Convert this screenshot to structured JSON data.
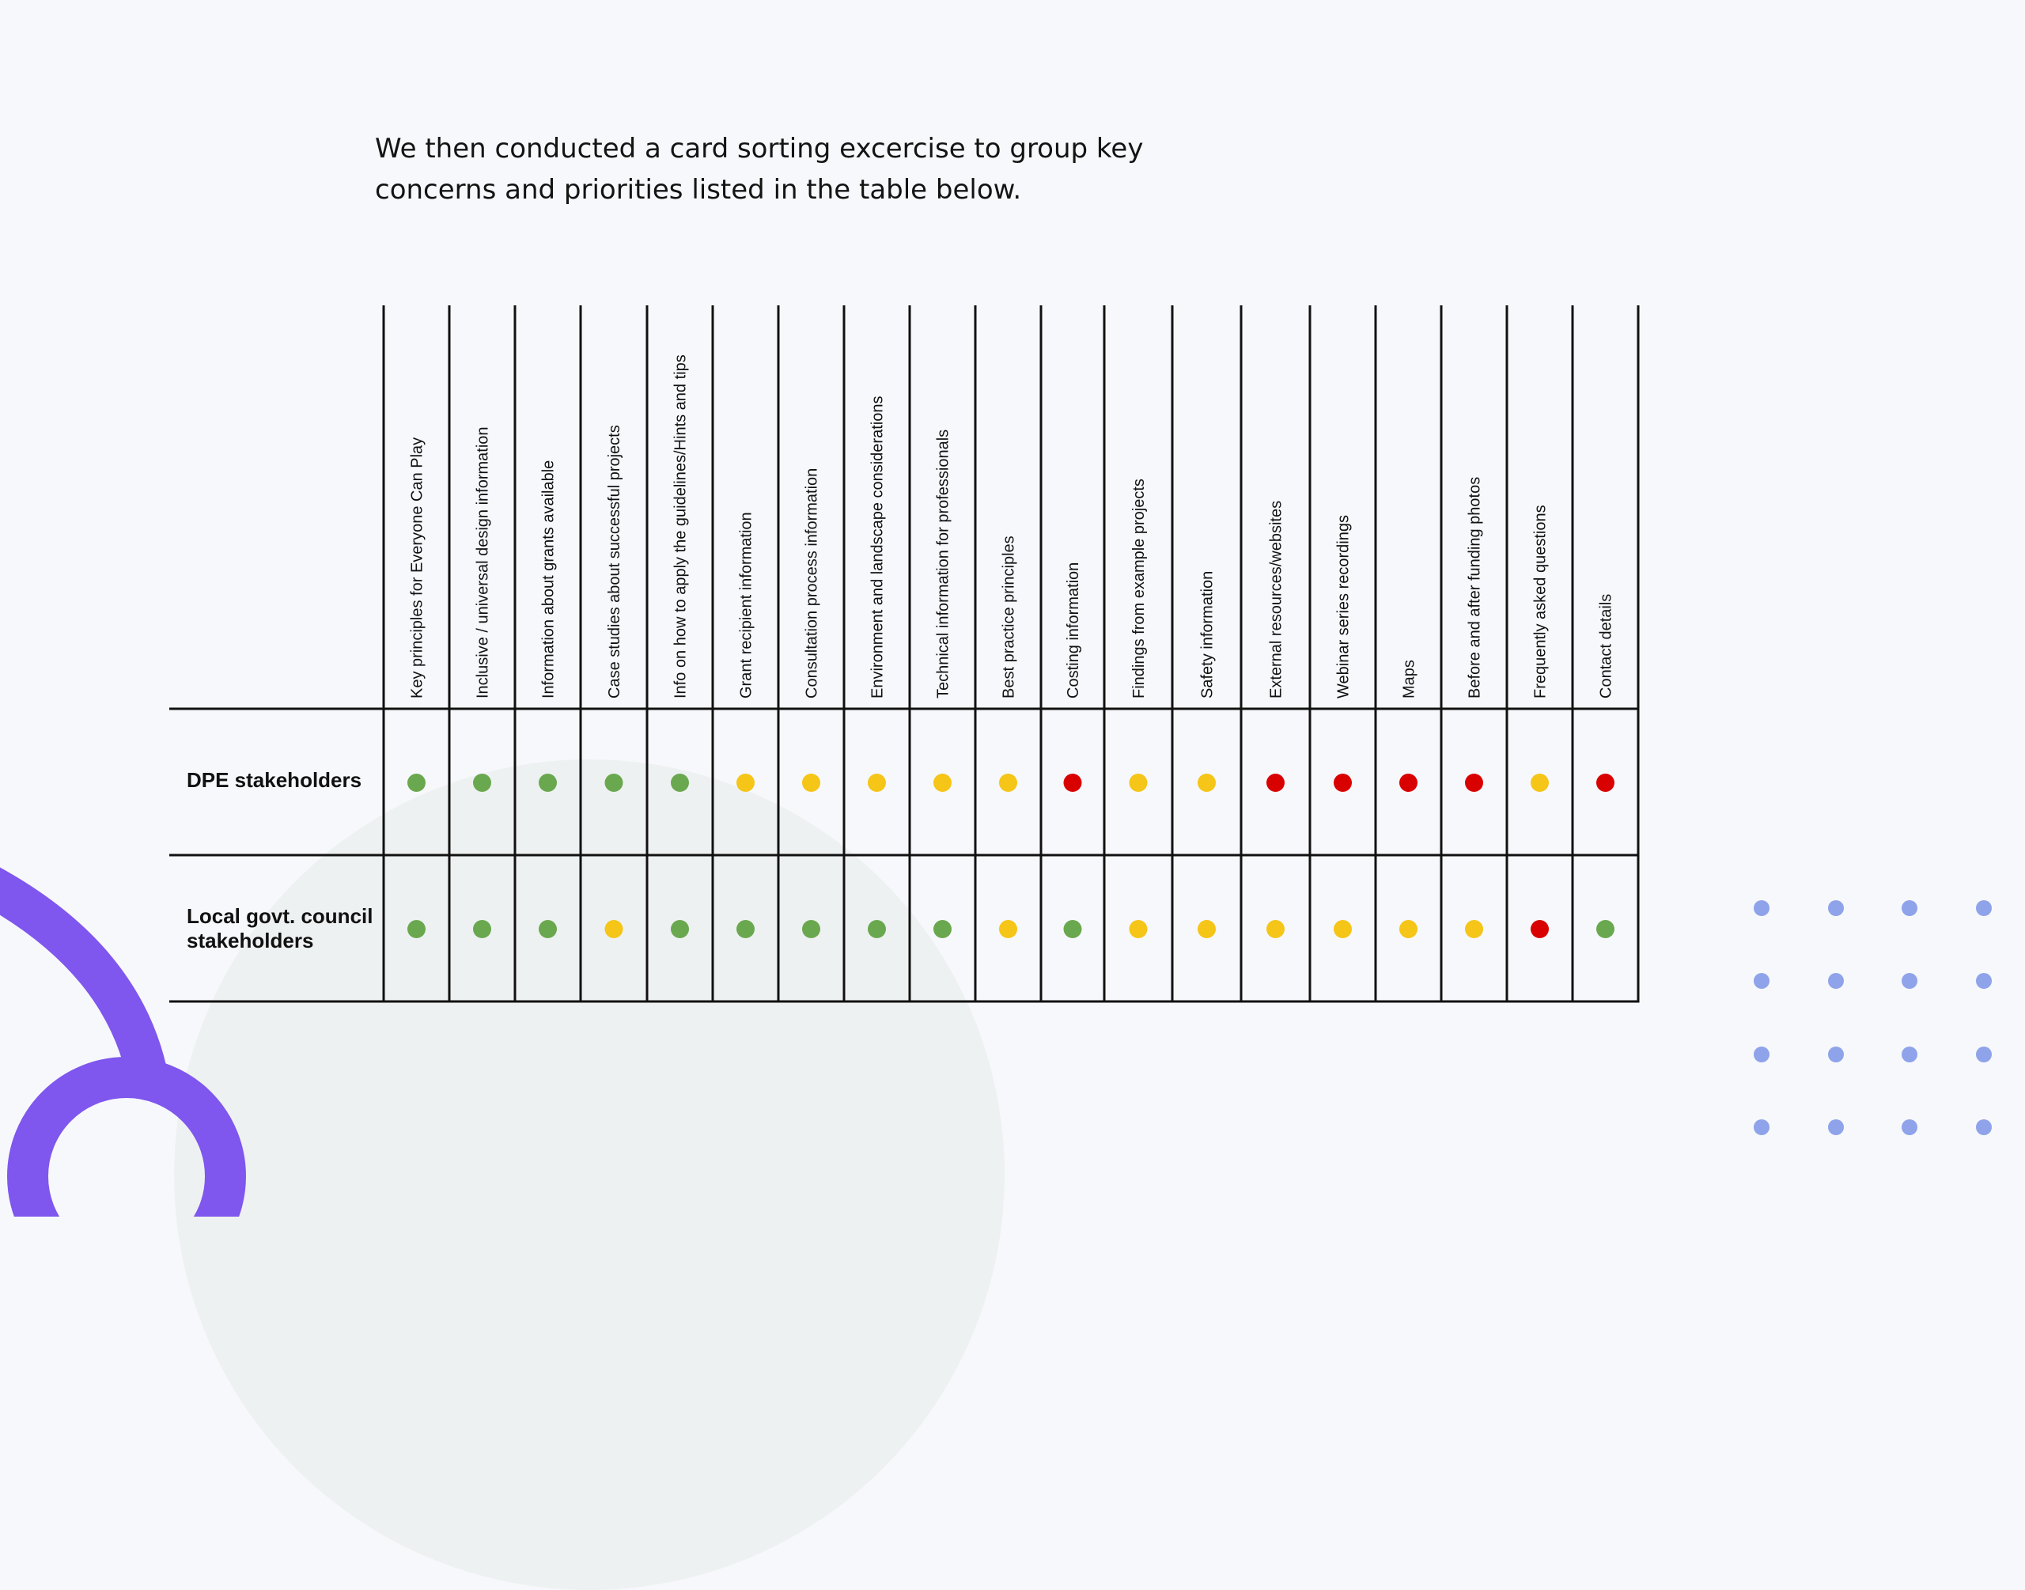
{
  "intro": {
    "line1": "We then conducted a card sorting excercise to group key",
    "line2": "concerns and priorities listed in the table below."
  },
  "colors": {
    "green": "#6aa84f",
    "yellow": "#f5c518",
    "red": "#d90000",
    "accent_purple": "#7f56ee",
    "dot_blue": "#8ea3ea",
    "grid_line": "#111111"
  },
  "table": {
    "columns": [
      "Key principles for Everyone Can Play",
      "Inclusive / universal design information",
      "Information about grants available",
      "Case studies about successful projects",
      "Info on how to apply the guidelines/Hints and tips",
      "Grant recipient information",
      "Consultation process information",
      "Environment and landscape considerations",
      "Technical information for professionals",
      "Best practice principles",
      "Costing information",
      "Findings from example projects",
      "Safety information",
      "External resources/websites",
      "Webinar series recordings",
      "Maps",
      "Before and after funding photos",
      "Frequently asked questions",
      "Contact details"
    ],
    "rows": [
      {
        "label": "DPE stakeholders",
        "ratings": [
          "green",
          "green",
          "green",
          "green",
          "green",
          "yellow",
          "yellow",
          "yellow",
          "yellow",
          "yellow",
          "red",
          "yellow",
          "yellow",
          "red",
          "red",
          "red",
          "red",
          "yellow",
          "red"
        ]
      },
      {
        "label": "Local govt. council stakeholders",
        "ratings": [
          "green",
          "green",
          "green",
          "yellow",
          "green",
          "green",
          "green",
          "green",
          "green",
          "yellow",
          "green",
          "yellow",
          "yellow",
          "yellow",
          "yellow",
          "yellow",
          "yellow",
          "red",
          "green"
        ]
      }
    ]
  }
}
